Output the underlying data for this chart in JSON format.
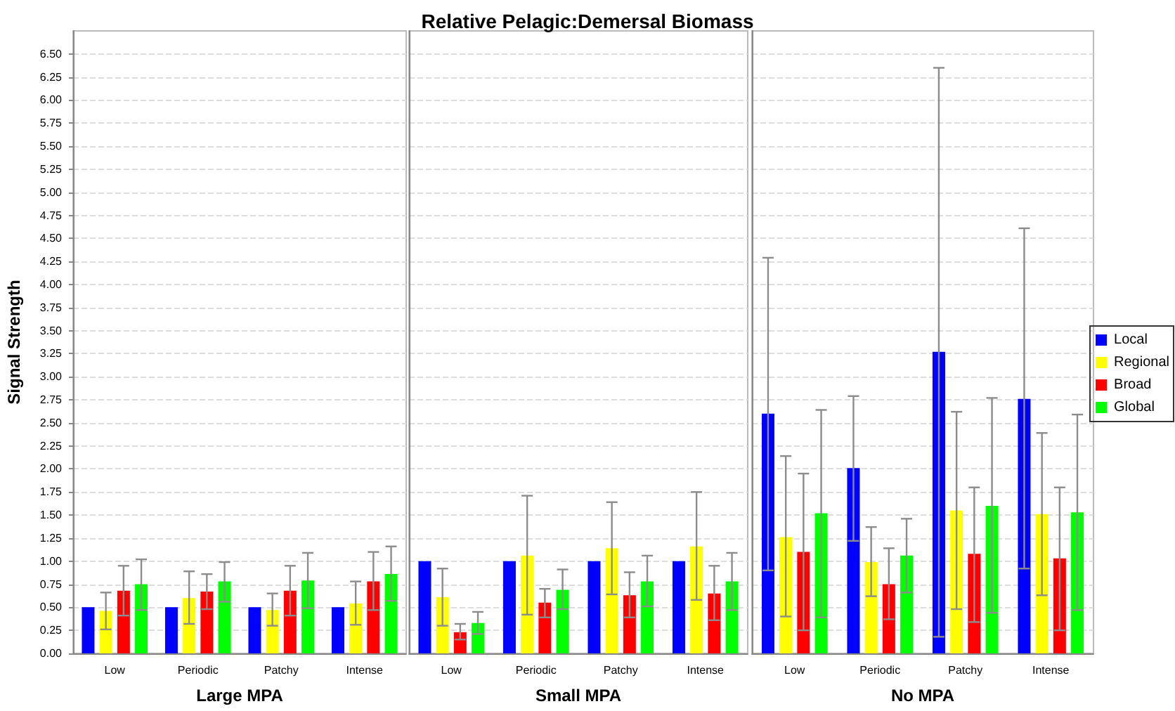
{
  "chart_data": [
    {
      "type": "bar",
      "xlabel": "Large MPA",
      "ylabel": "Signal Strength",
      "categories": [
        "Low",
        "Periodic",
        "Patchy",
        "Intense"
      ],
      "series": [
        {
          "color": "#0000ff",
          "values": [
            0.5,
            0.5,
            0.5,
            0.5
          ]
        },
        {
          "color": "#ffff00",
          "values": [
            0.46,
            0.6,
            0.47,
            0.54
          ],
          "errors": [
            [
              0.26,
              0.66
            ],
            [
              0.32,
              0.89
            ],
            [
              0.3,
              0.65
            ],
            [
              0.31,
              0.78
            ]
          ]
        },
        {
          "color": "#ff0000",
          "values": [
            0.68,
            0.67,
            0.68,
            0.78
          ],
          "errors": [
            [
              0.41,
              0.95
            ],
            [
              0.48,
              0.86
            ],
            [
              0.41,
              0.95
            ],
            [
              0.47,
              1.1
            ]
          ]
        },
        {
          "color": "#00ff00",
          "values": [
            0.75,
            0.78,
            0.79,
            0.86
          ],
          "errors": [
            [
              0.47,
              1.02
            ],
            [
              0.56,
              0.99
            ],
            [
              0.49,
              1.09
            ],
            [
              0.57,
              1.16
            ]
          ]
        }
      ],
      "ylim": [
        0,
        6.75
      ],
      "yticks": [
        {
          "value": 0,
          "label": "0.00"
        },
        {
          "value": 0.25,
          "label": "0.25"
        },
        {
          "value": 0.5,
          "label": "0.50"
        },
        {
          "value": 0.75,
          "label": "0.75"
        },
        {
          "value": 1,
          "label": "1.00"
        },
        {
          "value": 1.25,
          "label": "1.25"
        },
        {
          "value": 1.5,
          "label": "1.50"
        },
        {
          "value": 1.75,
          "label": "1.75"
        },
        {
          "value": 2,
          "label": "2.00"
        },
        {
          "value": 2.25,
          "label": "2.25"
        },
        {
          "value": 2.5,
          "label": "2.50"
        },
        {
          "value": 2.75,
          "label": "2.75"
        },
        {
          "value": 3,
          "label": "3.00"
        },
        {
          "value": 3.25,
          "label": "3.25"
        },
        {
          "value": 3.5,
          "label": "3.50"
        },
        {
          "value": 3.75,
          "label": "3.75"
        },
        {
          "value": 4,
          "label": "4.00"
        },
        {
          "value": 4.25,
          "label": "4.25"
        },
        {
          "value": 4.5,
          "label": "4.50"
        },
        {
          "value": 4.75,
          "label": "4.75"
        },
        {
          "value": 5,
          "label": "5.00"
        },
        {
          "value": 5.25,
          "label": "5.25"
        },
        {
          "value": 5.5,
          "label": "5.50"
        },
        {
          "value": 5.75,
          "label": "5.75"
        },
        {
          "value": 6,
          "label": "6.00"
        },
        {
          "value": 6.25,
          "label": "6.25"
        },
        {
          "value": 6.5,
          "label": "6.50"
        }
      ],
      "grid": "y",
      "legend": false
    },
    {
      "type": "bar",
      "title": "Relative Pelagic:Demersal Biomass",
      "xlabel": "Small MPA",
      "categories": [
        "Low",
        "Periodic",
        "Patchy",
        "Intense"
      ],
      "series": [
        {
          "color": "#0000ff",
          "values": [
            1,
            1,
            1,
            1
          ]
        },
        {
          "color": "#ffff00",
          "values": [
            0.61,
            1.06,
            1.14,
            1.16
          ],
          "errors": [
            [
              0.3,
              0.92
            ],
            [
              0.42,
              1.71
            ],
            [
              0.64,
              1.64
            ],
            [
              0.58,
              1.75
            ]
          ]
        },
        {
          "color": "#ff0000",
          "values": [
            0.23,
            0.55,
            0.63,
            0.65
          ],
          "errors": [
            [
              0.15,
              0.32
            ],
            [
              0.39,
              0.7
            ],
            [
              0.39,
              0.88
            ],
            [
              0.36,
              0.95
            ]
          ]
        },
        {
          "color": "#00ff00",
          "values": [
            0.33,
            0.69,
            0.78,
            0.78
          ],
          "errors": [
            [
              0.21,
              0.45
            ],
            [
              0.48,
              0.91
            ],
            [
              0.51,
              1.06
            ],
            [
              0.47,
              1.09
            ]
          ]
        }
      ],
      "ylim": [
        0,
        6.75
      ],
      "yticks": [
        0,
        0.25,
        0.5,
        0.75,
        1,
        1.25,
        1.5,
        1.75,
        2,
        2.25,
        2.5,
        2.75,
        3,
        3.25,
        3.5,
        3.75,
        4,
        4.25,
        4.5,
        4.75,
        5,
        5.25,
        5.5,
        5.75,
        6,
        6.25,
        6.5
      ],
      "tick_labels": "x",
      "grid": "y",
      "legend": false
    },
    {
      "type": "bar",
      "xlabel": "No MPA",
      "categories": [
        "Low",
        "Periodic",
        "Patchy",
        "Intense"
      ],
      "series": [
        {
          "name": "Local",
          "color": "#0000ff",
          "values": [
            2.6,
            2.01,
            3.27,
            2.76
          ],
          "errors": [
            [
              0.9,
              4.29
            ],
            [
              1.22,
              2.79
            ],
            [
              0.18,
              6.35
            ],
            [
              0.92,
              4.61
            ]
          ]
        },
        {
          "name": "Regional",
          "color": "#ffff00",
          "values": [
            1.26,
            0.99,
            1.55,
            1.51
          ],
          "errors": [
            [
              0.4,
              2.14
            ],
            [
              0.62,
              1.37
            ],
            [
              0.48,
              2.62
            ],
            [
              0.63,
              2.39
            ]
          ]
        },
        {
          "name": "Broad",
          "color": "#ff0000",
          "values": [
            1.1,
            0.75,
            1.08,
            1.03
          ],
          "errors": [
            [
              0.25,
              1.95
            ],
            [
              0.37,
              1.14
            ],
            [
              0.34,
              1.8
            ],
            [
              0.25,
              1.8
            ]
          ]
        },
        {
          "name": "Global",
          "color": "#00ff00",
          "values": [
            1.52,
            1.06,
            1.6,
            1.53
          ],
          "errors": [
            [
              0.39,
              2.64
            ],
            [
              0.66,
              1.46
            ],
            [
              0.44,
              2.77
            ],
            [
              0.47,
              2.59
            ]
          ]
        }
      ],
      "ylim": [
        0,
        6.75
      ],
      "yticks": [
        0,
        0.25,
        0.5,
        0.75,
        1,
        1.25,
        1.5,
        1.75,
        2,
        2.25,
        2.5,
        2.75,
        3,
        3.25,
        3.5,
        3.75,
        4,
        4.25,
        4.5,
        4.75,
        5,
        5.25,
        5.5,
        5.75,
        6,
        6.25,
        6.5
      ],
      "tick_labels": "x",
      "grid": "y",
      "legend": "right"
    }
  ]
}
